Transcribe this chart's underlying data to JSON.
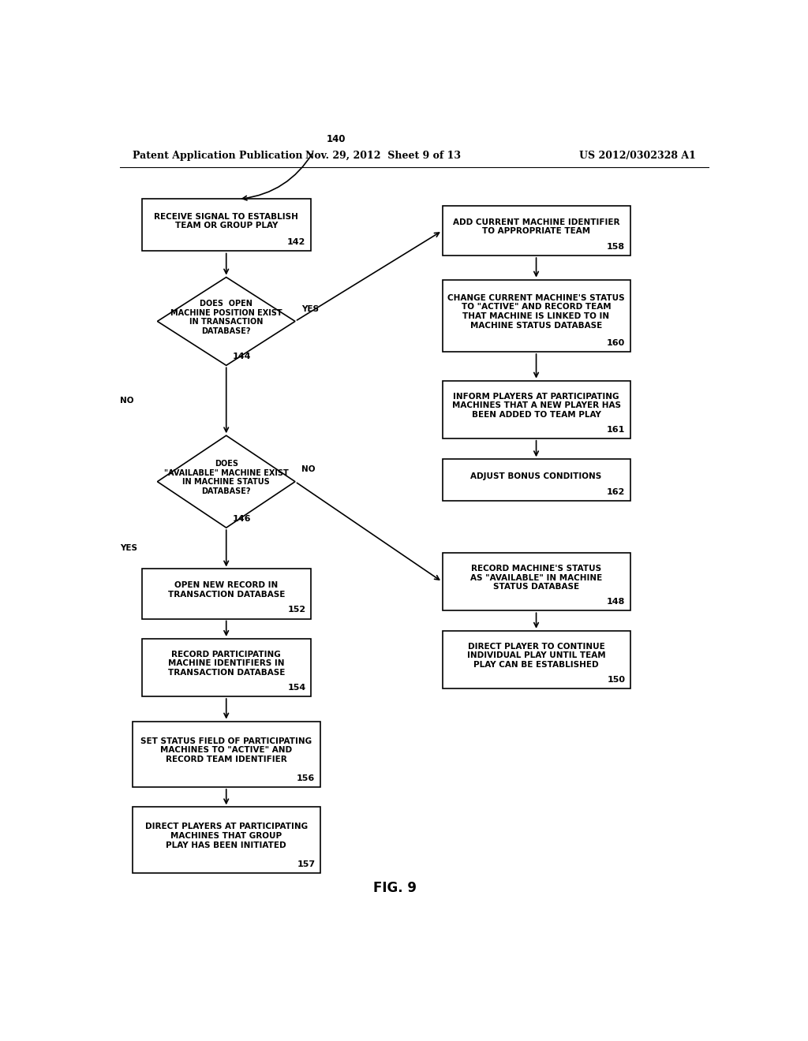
{
  "title_left": "Patent Application Publication",
  "title_mid": "Nov. 29, 2012  Sheet 9 of 13",
  "title_right": "US 2012/0302328 A1",
  "fig_label": "FIG. 9",
  "bg_color": "#ffffff",
  "line_color": "#000000",
  "text_color": "#000000",
  "font_size": 7.5,
  "header_font_size": 9
}
